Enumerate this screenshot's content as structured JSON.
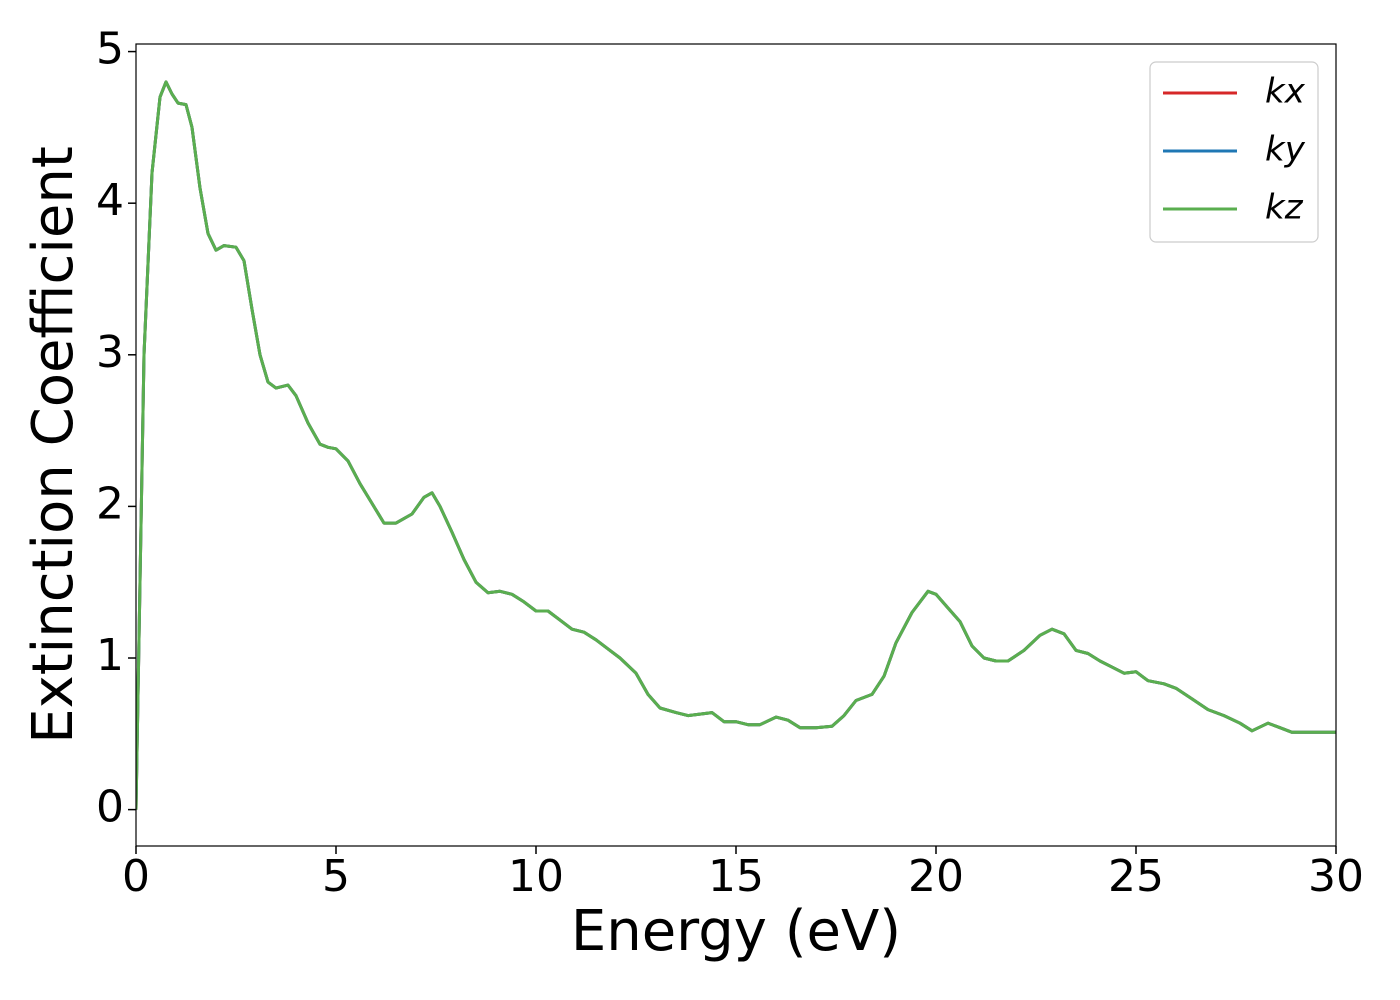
{
  "chart_data": {
    "type": "line",
    "xlabel": "Energy (eV)",
    "ylabel": "Extinction Coefficient",
    "x": [
      0,
      0.1,
      0.2,
      0.4,
      0.6,
      0.75,
      0.9,
      1.05,
      1.25,
      1.4,
      1.6,
      1.8,
      2.0,
      2.2,
      2.5,
      2.7,
      2.9,
      3.1,
      3.3,
      3.5,
      3.8,
      4.0,
      4.3,
      4.6,
      4.8,
      5.0,
      5.3,
      5.6,
      5.9,
      6.2,
      6.5,
      6.9,
      7.2,
      7.4,
      7.6,
      7.9,
      8.2,
      8.5,
      8.8,
      9.1,
      9.4,
      9.7,
      10.0,
      10.3,
      10.6,
      10.9,
      11.2,
      11.5,
      11.8,
      12.1,
      12.5,
      12.8,
      13.1,
      13.5,
      13.8,
      14.1,
      14.4,
      14.7,
      15.0,
      15.3,
      15.6,
      16.0,
      16.3,
      16.6,
      17.0,
      17.4,
      17.7,
      18.0,
      18.4,
      18.7,
      19.0,
      19.4,
      19.8,
      20.0,
      20.3,
      20.6,
      20.9,
      21.2,
      21.5,
      21.8,
      22.2,
      22.6,
      22.9,
      23.2,
      23.5,
      23.8,
      24.1,
      24.4,
      24.7,
      25.0,
      25.3,
      25.7,
      26.0,
      26.4,
      26.8,
      27.2,
      27.6,
      27.9,
      28.3,
      28.6,
      28.9,
      29.2,
      29.6,
      30.0
    ],
    "series": [
      {
        "name": "kx",
        "color": "#d62728",
        "values": [
          0,
          1.5,
          3.0,
          4.2,
          4.7,
          4.8,
          4.72,
          4.66,
          4.65,
          4.5,
          4.1,
          3.8,
          3.69,
          3.72,
          3.71,
          3.62,
          3.3,
          3.0,
          2.82,
          2.78,
          2.8,
          2.73,
          2.55,
          2.41,
          2.39,
          2.38,
          2.3,
          2.15,
          2.02,
          1.89,
          1.89,
          1.95,
          2.06,
          2.09,
          2.0,
          1.83,
          1.65,
          1.5,
          1.43,
          1.44,
          1.42,
          1.37,
          1.31,
          1.31,
          1.25,
          1.19,
          1.17,
          1.12,
          1.06,
          1.0,
          0.9,
          0.76,
          0.67,
          0.64,
          0.62,
          0.63,
          0.64,
          0.58,
          0.58,
          0.56,
          0.56,
          0.61,
          0.59,
          0.54,
          0.54,
          0.55,
          0.62,
          0.72,
          0.76,
          0.88,
          1.1,
          1.3,
          1.44,
          1.42,
          1.33,
          1.24,
          1.08,
          1.0,
          0.98,
          0.98,
          1.05,
          1.15,
          1.19,
          1.16,
          1.05,
          1.03,
          0.98,
          0.94,
          0.9,
          0.91,
          0.85,
          0.83,
          0.8,
          0.73,
          0.66,
          0.62,
          0.57,
          0.52,
          0.57,
          0.54,
          0.51,
          0.51,
          0.51,
          0.51
        ]
      },
      {
        "name": "ky",
        "color": "#1f77b4",
        "values": [
          0,
          1.5,
          3.0,
          4.2,
          4.7,
          4.8,
          4.72,
          4.66,
          4.65,
          4.5,
          4.1,
          3.8,
          3.69,
          3.72,
          3.71,
          3.62,
          3.3,
          3.0,
          2.82,
          2.78,
          2.8,
          2.73,
          2.55,
          2.41,
          2.39,
          2.38,
          2.3,
          2.15,
          2.02,
          1.89,
          1.89,
          1.95,
          2.06,
          2.09,
          2.0,
          1.83,
          1.65,
          1.5,
          1.43,
          1.44,
          1.42,
          1.37,
          1.31,
          1.31,
          1.25,
          1.19,
          1.17,
          1.12,
          1.06,
          1.0,
          0.9,
          0.76,
          0.67,
          0.64,
          0.62,
          0.63,
          0.64,
          0.58,
          0.58,
          0.56,
          0.56,
          0.61,
          0.59,
          0.54,
          0.54,
          0.55,
          0.62,
          0.72,
          0.76,
          0.88,
          1.1,
          1.3,
          1.44,
          1.42,
          1.33,
          1.24,
          1.08,
          1.0,
          0.98,
          0.98,
          1.05,
          1.15,
          1.19,
          1.16,
          1.05,
          1.03,
          0.98,
          0.94,
          0.9,
          0.91,
          0.85,
          0.83,
          0.8,
          0.73,
          0.66,
          0.62,
          0.57,
          0.52,
          0.57,
          0.54,
          0.51,
          0.51,
          0.51,
          0.51
        ]
      },
      {
        "name": "kz",
        "color": "#5aae4f",
        "values": [
          0,
          1.5,
          3.0,
          4.2,
          4.7,
          4.8,
          4.72,
          4.66,
          4.65,
          4.5,
          4.1,
          3.8,
          3.69,
          3.72,
          3.71,
          3.62,
          3.3,
          3.0,
          2.82,
          2.78,
          2.8,
          2.73,
          2.55,
          2.41,
          2.39,
          2.38,
          2.3,
          2.15,
          2.02,
          1.89,
          1.89,
          1.95,
          2.06,
          2.09,
          2.0,
          1.83,
          1.65,
          1.5,
          1.43,
          1.44,
          1.42,
          1.37,
          1.31,
          1.31,
          1.25,
          1.19,
          1.17,
          1.12,
          1.06,
          1.0,
          0.9,
          0.76,
          0.67,
          0.64,
          0.62,
          0.63,
          0.64,
          0.58,
          0.58,
          0.56,
          0.56,
          0.61,
          0.59,
          0.54,
          0.54,
          0.55,
          0.62,
          0.72,
          0.76,
          0.88,
          1.1,
          1.3,
          1.44,
          1.42,
          1.33,
          1.24,
          1.08,
          1.0,
          0.98,
          0.98,
          1.05,
          1.15,
          1.19,
          1.16,
          1.05,
          1.03,
          0.98,
          0.94,
          0.9,
          0.91,
          0.85,
          0.83,
          0.8,
          0.73,
          0.66,
          0.62,
          0.57,
          0.52,
          0.57,
          0.54,
          0.51,
          0.51,
          0.51,
          0.51
        ]
      }
    ],
    "xlim": [
      0,
      30
    ],
    "xticks": [
      0,
      5,
      10,
      15,
      20,
      25,
      30
    ],
    "ylim": [
      -0.24,
      5.05
    ],
    "yticks": [
      0,
      1,
      2,
      3,
      4,
      5
    ],
    "legend": "upper right"
  }
}
